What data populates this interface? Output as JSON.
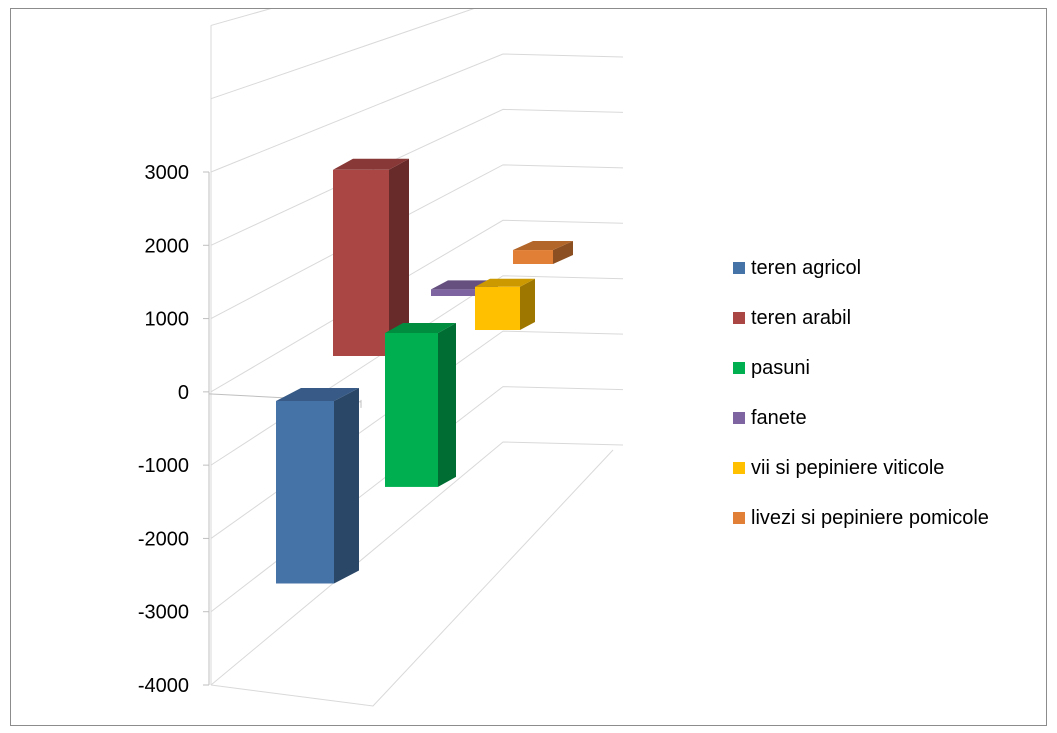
{
  "chart_data": {
    "type": "bar",
    "variant": "3d-column",
    "title": "",
    "xlabel": "",
    "ylabel": "",
    "ylim": [
      -4000,
      3000
    ],
    "yticks": [
      3000,
      2000,
      1000,
      0,
      -1000,
      -2000,
      -3000,
      -4000
    ],
    "grid": true,
    "legend_position": "right",
    "series": [
      {
        "name": "teren agricol",
        "value": -2500,
        "color": "#4572a7"
      },
      {
        "name": "teren arabil",
        "value": 2450,
        "color": "#aa4643"
      },
      {
        "name": "pasuni",
        "value": -2350,
        "color": "#00b050"
      },
      {
        "name": "fanete",
        "value": 110,
        "color": "#7e64a0"
      },
      {
        "name": "vii si pepiniere viticole",
        "value": 720,
        "color": "#ffc000"
      },
      {
        "name": "livezi si pepiniere pomicole",
        "value": 310,
        "color": "#e07f35"
      }
    ]
  }
}
